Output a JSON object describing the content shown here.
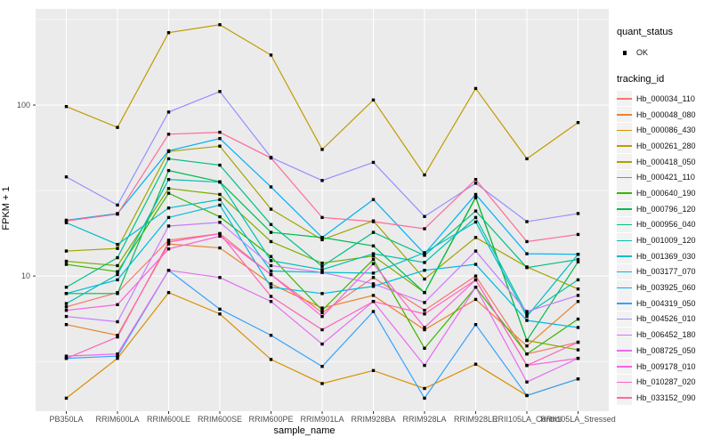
{
  "figure": {
    "panel_bg": "#EBEBEB",
    "grid_color": "#FFFFFF",
    "axis_text_color": "#4D4D4D",
    "tick_color": "#333333",
    "point_color": "#000000",
    "legend_key_bg": "#F2F2F2"
  },
  "legend": {
    "quant_title": "quant_status",
    "quant_items": [
      {
        "label": "OK",
        "shape": "black-square-point"
      }
    ],
    "tracking_title": "tracking_id"
  },
  "chart_data": {
    "type": "line",
    "title": "",
    "xlabel": "sample_name",
    "ylabel": "FPKM + 1",
    "y_scale": "log10",
    "y_ticks": [
      100,
      10
    ],
    "y_tick_labels": [
      "100",
      "10"
    ],
    "y_minor_ticks": [
      316.2,
      31.62,
      3.162
    ],
    "ylim": [
      1.62,
      365
    ],
    "grid": true,
    "legend_position": "right",
    "point_shape": "filled-square",
    "categories": [
      "PB350LA",
      "RRIM600LA",
      "RRIM600LE",
      "RRIM600SE",
      "RRIM600PE",
      "RRIM901LA",
      "RRIM928BA",
      "RRIM928LA",
      "RRIM928LE",
      "RRII105LA_Control",
      "RRII105LA_Stressed"
    ],
    "series": [
      {
        "name": "Hb_000034_110",
        "color": "#F8766D",
        "values": [
          6.6,
          8.0,
          16.2,
          17.7,
          10.2,
          6.1,
          9.8,
          6.3,
          10.0,
          3.5,
          4.1
        ]
      },
      {
        "name": "Hb_000048_080",
        "color": "#EA8331",
        "values": [
          5.2,
          4.5,
          15.4,
          14.6,
          9.0,
          6.5,
          7.7,
          4.85,
          7.3,
          3.9,
          7.1
        ]
      },
      {
        "name": "Hb_000086_430",
        "color": "#D89000",
        "values": [
          1.93,
          3.3,
          8.0,
          6.0,
          3.25,
          2.35,
          2.8,
          2.2,
          3.05,
          2.0,
          2.5
        ]
      },
      {
        "name": "Hb_000261_280",
        "color": "#C09B00",
        "values": [
          98,
          74,
          265,
          295,
          196,
          55,
          107,
          39,
          125,
          48.5,
          79
        ]
      },
      {
        "name": "Hb_000418_050",
        "color": "#A3A500",
        "values": [
          14,
          14.5,
          53.5,
          57.5,
          24.6,
          16.3,
          21,
          9.6,
          16.8,
          11.3,
          8.4
        ]
      },
      {
        "name": "Hb_000421_110",
        "color": "#7CAE00",
        "values": [
          12.2,
          11.5,
          32.5,
          30.0,
          15.9,
          11.9,
          13.1,
          8.0,
          28.7,
          4.2,
          3.7
        ]
      },
      {
        "name": "Hb_000640_190",
        "color": "#39B600",
        "values": [
          11.7,
          10.6,
          30.5,
          22.2,
          13.0,
          6.3,
          12.5,
          3.78,
          8.6,
          3.5,
          5.6
        ]
      },
      {
        "name": "Hb_000796_120",
        "color": "#00BB4E",
        "values": [
          7.9,
          7.9,
          41.4,
          35.6,
          18.0,
          16.8,
          15.0,
          8.0,
          29.0,
          4.2,
          12.1
        ]
      },
      {
        "name": "Hb_000956_040",
        "color": "#00C087",
        "values": [
          8.6,
          12.8,
          48.5,
          44.5,
          20.0,
          11.4,
          18.0,
          13.2,
          24.0,
          11.2,
          12.5
        ]
      },
      {
        "name": "Hb_001009_120",
        "color": "#00C0B2",
        "values": [
          6.9,
          10.2,
          36.7,
          35.4,
          12.3,
          10.9,
          13.5,
          12.0,
          22.0,
          6.0,
          9.5
        ]
      },
      {
        "name": "Hb_001369_030",
        "color": "#00BFC4",
        "values": [
          20.5,
          15.3,
          25.0,
          28.0,
          10.7,
          10.5,
          10.4,
          13.7,
          20.7,
          5.8,
          13.4
        ]
      },
      {
        "name": "Hb_003177_070",
        "color": "#00BAE0",
        "values": [
          7.9,
          9.5,
          22.0,
          26.0,
          8.6,
          7.9,
          8.7,
          10.8,
          11.7,
          5.5,
          5.0
        ]
      },
      {
        "name": "Hb_003925_060",
        "color": "#00B0F6",
        "values": [
          21.2,
          23.2,
          54.0,
          63.7,
          33.2,
          16.8,
          28.0,
          13.5,
          30.0,
          13.5,
          13.4
        ]
      },
      {
        "name": "Hb_004319_050",
        "color": "#35A2FF",
        "values": [
          3.3,
          3.4,
          10.8,
          6.4,
          4.5,
          2.96,
          6.2,
          1.93,
          5.2,
          2.0,
          2.5
        ]
      },
      {
        "name": "Hb_004526_010",
        "color": "#9590FF",
        "values": [
          38,
          26,
          91,
          120,
          49.4,
          36.2,
          46.2,
          22.3,
          34.9,
          20.8,
          23.2
        ]
      },
      {
        "name": "Hb_006452_180",
        "color": "#C77CFF",
        "values": [
          5.8,
          5.4,
          19.6,
          20.6,
          11.5,
          10.5,
          9.0,
          7.0,
          14.0,
          6.2,
          7.7
        ]
      },
      {
        "name": "Hb_008725_050",
        "color": "#E76BF3",
        "values": [
          3.4,
          3.5,
          10.8,
          9.8,
          7.1,
          4.0,
          7.1,
          3.0,
          8.6,
          2.4,
          3.3
        ]
      },
      {
        "name": "Hb_009178_010",
        "color": "#FA62DB",
        "values": [
          6.3,
          6.8,
          14.4,
          17.1,
          10.2,
          5.8,
          11.8,
          5.0,
          9.5,
          3.0,
          3.3
        ]
      },
      {
        "name": "Hb_010287_020",
        "color": "#FF62BC",
        "values": [
          3.3,
          4.4,
          15.8,
          17.7,
          7.6,
          4.85,
          7.1,
          6.0,
          9.5,
          3.0,
          4.1
        ]
      },
      {
        "name": "Hb_033152_090",
        "color": "#FF6A98",
        "values": [
          21.0,
          23.0,
          67.5,
          69.3,
          49.0,
          22.0,
          20.8,
          18.9,
          36.7,
          15.9,
          17.5
        ]
      }
    ]
  }
}
